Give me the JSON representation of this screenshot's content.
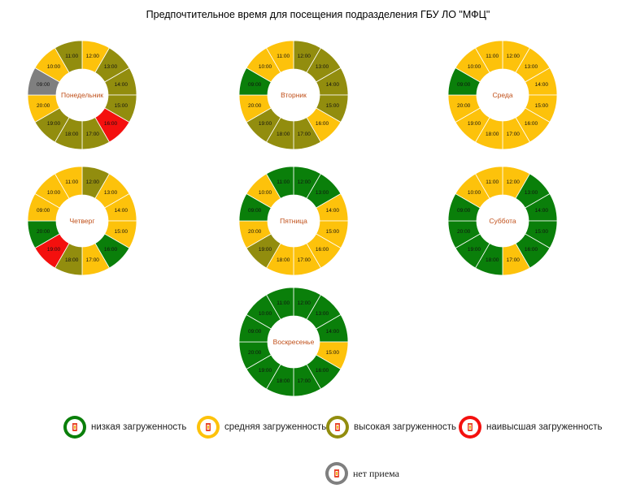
{
  "title": "Предпочтительное время для посещения подразделения ГБУ ЛО \"МФЦ\"",
  "colors": {
    "low": "#0a7f0a",
    "medium": "#fdc20b",
    "high": "#928d0e",
    "highest": "#f4100e",
    "none": "#7f7f7f",
    "dayLabel": "#c0501a",
    "logoRed": "#e8452c"
  },
  "legend": {
    "low": "низкая загруженность",
    "medium": "средняя загруженность",
    "high": "высокая загруженность",
    "highest": "наивысшая загруженность",
    "none": "нет приема"
  },
  "chart_data": [
    {
      "type": "pie",
      "day": "Понедельник",
      "slots": [
        {
          "time": "12:00",
          "load": "medium"
        },
        {
          "time": "13:00",
          "load": "high"
        },
        {
          "time": "14:00",
          "load": "high"
        },
        {
          "time": "15:00",
          "load": "high"
        },
        {
          "time": "16:00",
          "load": "highest"
        },
        {
          "time": "17:00",
          "load": "high"
        },
        {
          "time": "18:00",
          "load": "high"
        },
        {
          "time": "19:00",
          "load": "high"
        },
        {
          "time": "20:00",
          "load": "medium"
        },
        {
          "time": "09:00",
          "load": "none"
        },
        {
          "time": "10:00",
          "load": "medium"
        },
        {
          "time": "11:00",
          "load": "high"
        }
      ]
    },
    {
      "type": "pie",
      "day": "Вторник",
      "slots": [
        {
          "time": "12:00",
          "load": "high"
        },
        {
          "time": "13:00",
          "load": "high"
        },
        {
          "time": "14:00",
          "load": "high"
        },
        {
          "time": "15:00",
          "load": "high"
        },
        {
          "time": "16:00",
          "load": "medium"
        },
        {
          "time": "17:00",
          "load": "high"
        },
        {
          "time": "18:00",
          "load": "high"
        },
        {
          "time": "19:00",
          "load": "high"
        },
        {
          "time": "20:00",
          "load": "medium"
        },
        {
          "time": "09:00",
          "load": "low"
        },
        {
          "time": "10:00",
          "load": "medium"
        },
        {
          "time": "11:00",
          "load": "medium"
        }
      ]
    },
    {
      "type": "pie",
      "day": "Среда",
      "slots": [
        {
          "time": "12:00",
          "load": "medium"
        },
        {
          "time": "13:00",
          "load": "medium"
        },
        {
          "time": "14:00",
          "load": "medium"
        },
        {
          "time": "15:00",
          "load": "medium"
        },
        {
          "time": "16:00",
          "load": "medium"
        },
        {
          "time": "17:00",
          "load": "medium"
        },
        {
          "time": "18:00",
          "load": "medium"
        },
        {
          "time": "19:00",
          "load": "medium"
        },
        {
          "time": "20:00",
          "load": "medium"
        },
        {
          "time": "09:00",
          "load": "low"
        },
        {
          "time": "10:00",
          "load": "medium"
        },
        {
          "time": "11:00",
          "load": "medium"
        }
      ]
    },
    {
      "type": "pie",
      "day": "Четверг",
      "slots": [
        {
          "time": "12:00",
          "load": "high"
        },
        {
          "time": "13:00",
          "load": "medium"
        },
        {
          "time": "14:00",
          "load": "medium"
        },
        {
          "time": "15:00",
          "load": "medium"
        },
        {
          "time": "16:00",
          "load": "low"
        },
        {
          "time": "17:00",
          "load": "medium"
        },
        {
          "time": "18:00",
          "load": "high"
        },
        {
          "time": "19:00",
          "load": "highest"
        },
        {
          "time": "20:00",
          "load": "low"
        },
        {
          "time": "09:00",
          "load": "medium"
        },
        {
          "time": "10:00",
          "load": "medium"
        },
        {
          "time": "11:00",
          "load": "medium"
        }
      ]
    },
    {
      "type": "pie",
      "day": "Пятница",
      "slots": [
        {
          "time": "12:00",
          "load": "low"
        },
        {
          "time": "13:00",
          "load": "low"
        },
        {
          "time": "14:00",
          "load": "medium"
        },
        {
          "time": "15:00",
          "load": "medium"
        },
        {
          "time": "16:00",
          "load": "medium"
        },
        {
          "time": "17:00",
          "load": "medium"
        },
        {
          "time": "18:00",
          "load": "medium"
        },
        {
          "time": "19:00",
          "load": "high"
        },
        {
          "time": "20:00",
          "load": "medium"
        },
        {
          "time": "09:00",
          "load": "low"
        },
        {
          "time": "10:00",
          "load": "medium"
        },
        {
          "time": "11:00",
          "load": "low"
        }
      ]
    },
    {
      "type": "pie",
      "day": "Суббота",
      "slots": [
        {
          "time": "12:00",
          "load": "medium"
        },
        {
          "time": "13:00",
          "load": "low"
        },
        {
          "time": "14:00",
          "load": "low"
        },
        {
          "time": "15:00",
          "load": "low"
        },
        {
          "time": "16:00",
          "load": "low"
        },
        {
          "time": "17:00",
          "load": "medium"
        },
        {
          "time": "18:00",
          "load": "low"
        },
        {
          "time": "19:00",
          "load": "low"
        },
        {
          "time": "20:00",
          "load": "low"
        },
        {
          "time": "09:00",
          "load": "low"
        },
        {
          "time": "10:00",
          "load": "medium"
        },
        {
          "time": "11:00",
          "load": "medium"
        }
      ]
    },
    {
      "type": "pie",
      "day": "Воскресенье",
      "slots": [
        {
          "time": "12:00",
          "load": "low"
        },
        {
          "time": "13:00",
          "load": "low"
        },
        {
          "time": "14:00",
          "load": "low"
        },
        {
          "time": "15:00",
          "load": "medium"
        },
        {
          "time": "16:00",
          "load": "low"
        },
        {
          "time": "17:00",
          "load": "low"
        },
        {
          "time": "18:00",
          "load": "low"
        },
        {
          "time": "19:00",
          "load": "low"
        },
        {
          "time": "20:00",
          "load": "low"
        },
        {
          "time": "09:00",
          "load": "low"
        },
        {
          "time": "10:00",
          "load": "low"
        },
        {
          "time": "11:00",
          "load": "low"
        }
      ]
    }
  ]
}
